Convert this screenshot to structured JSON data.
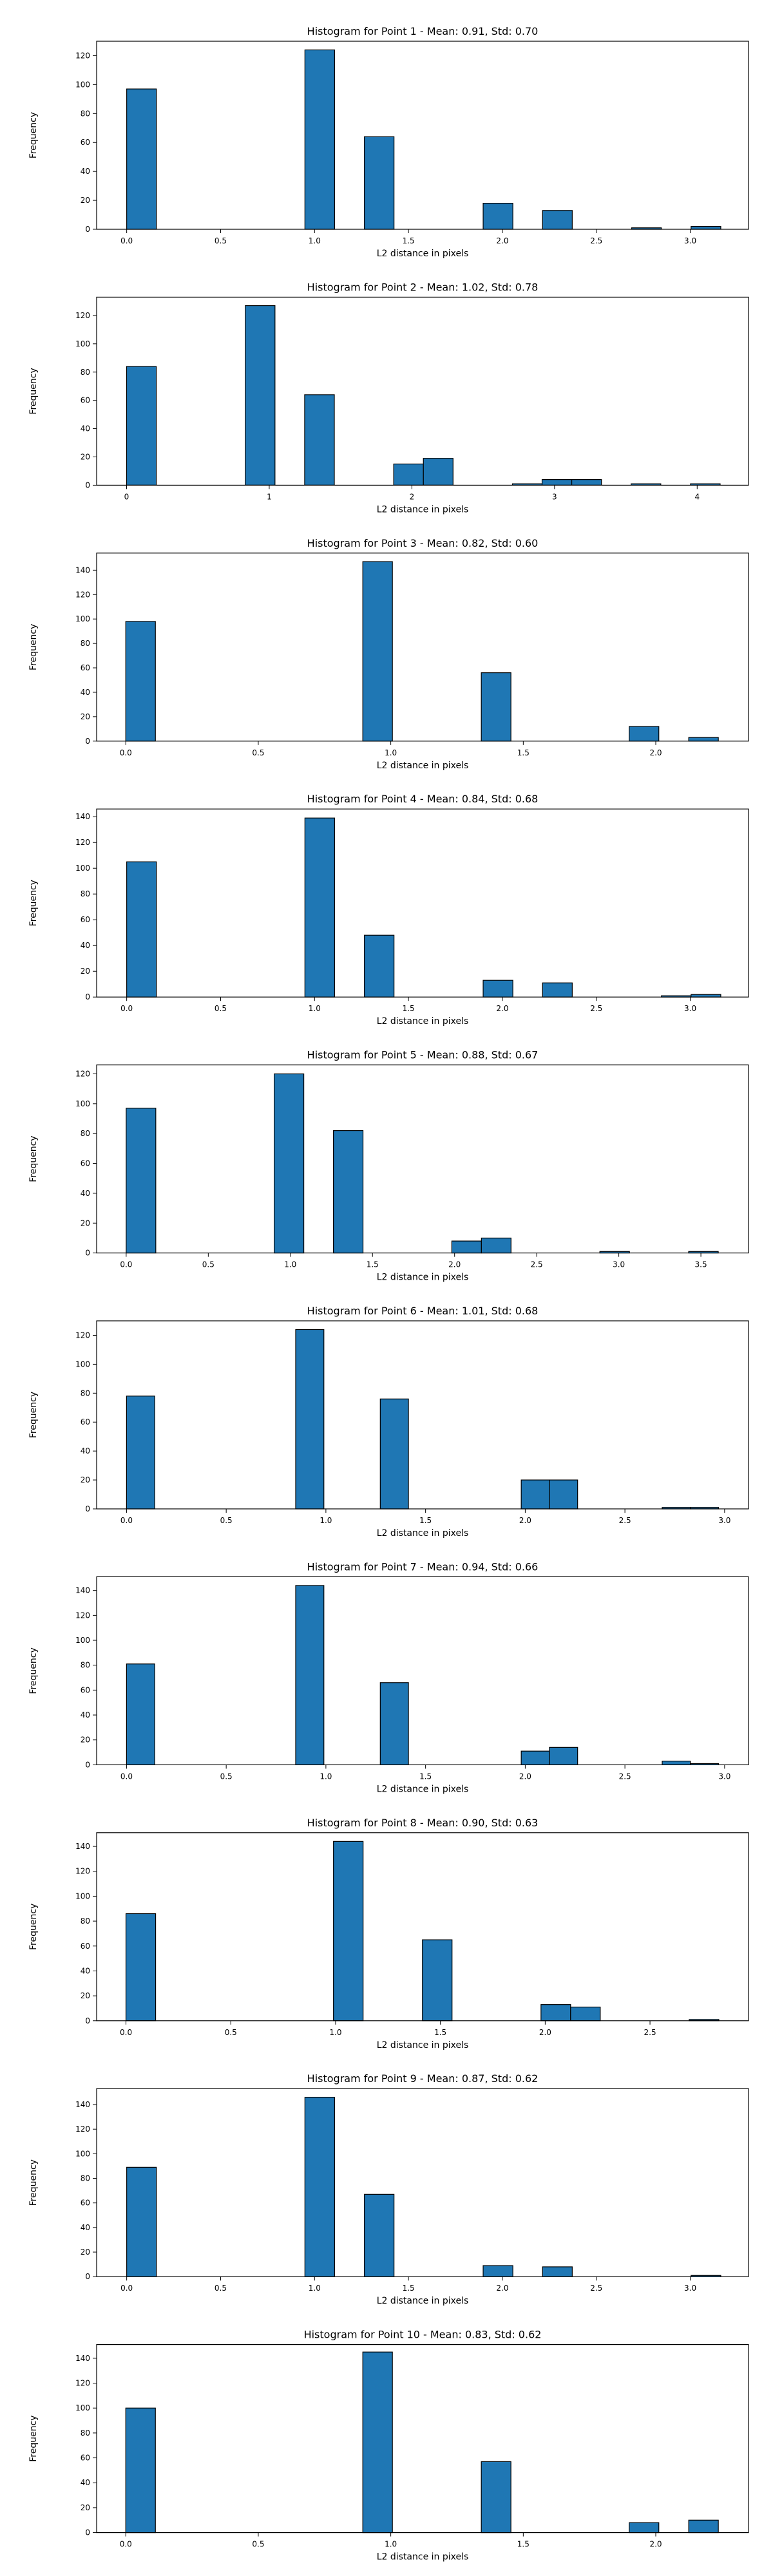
{
  "chart_data": [
    {
      "type": "bar",
      "title": "Histogram for Point 1 - Mean: 0.91, Std: 0.70",
      "xlabel": "L2 distance in pixels",
      "ylabel": "Frequency",
      "xlim": [
        -0.16,
        3.31
      ],
      "ylim": [
        0,
        130
      ],
      "xticks": [
        0.0,
        0.5,
        1.0,
        1.5,
        2.0,
        2.5,
        3.0
      ],
      "xtick_labels": [
        "0.0",
        "0.5",
        "1.0",
        "1.5",
        "2.0",
        "2.5",
        "3.0"
      ],
      "yticks": [
        0,
        20,
        40,
        60,
        80,
        100,
        120
      ],
      "ytick_labels": [
        "0",
        "20",
        "40",
        "60",
        "80",
        "100",
        "120"
      ],
      "bin_width": 0.1581,
      "bins": [
        {
          "x0": 0.0,
          "count": 97
        },
        {
          "x0": 0.9487,
          "count": 124
        },
        {
          "x0": 1.2649,
          "count": 64
        },
        {
          "x0": 1.8974,
          "count": 18
        },
        {
          "x0": 2.2136,
          "count": 13
        },
        {
          "x0": 2.6879,
          "count": 1
        },
        {
          "x0": 3.0042,
          "count": 2
        }
      ]
    },
    {
      "type": "bar",
      "title": "Histogram for Point 2 - Mean: 1.02, Std: 0.78",
      "xlabel": "L2 distance in pixels",
      "ylabel": "Frequency",
      "xlim": [
        -0.21,
        4.36
      ],
      "ylim": [
        0,
        133
      ],
      "xticks": [
        0,
        1,
        2,
        3,
        4
      ],
      "xtick_labels": [
        "0",
        "1",
        "2",
        "3",
        "4"
      ],
      "yticks": [
        0,
        20,
        40,
        60,
        80,
        100,
        120
      ],
      "ytick_labels": [
        "0",
        "20",
        "40",
        "60",
        "80",
        "100",
        "120"
      ],
      "bin_width": 0.2081,
      "bins": [
        {
          "x0": 0.0,
          "count": 84
        },
        {
          "x0": 0.8322,
          "count": 127
        },
        {
          "x0": 1.2483,
          "count": 64
        },
        {
          "x0": 1.8725,
          "count": 15
        },
        {
          "x0": 2.0806,
          "count": 19
        },
        {
          "x0": 2.7048,
          "count": 1
        },
        {
          "x0": 2.9128,
          "count": 4
        },
        {
          "x0": 3.1209,
          "count": 4
        },
        {
          "x0": 3.537,
          "count": 1
        },
        {
          "x0": 3.9531,
          "count": 1
        }
      ]
    },
    {
      "type": "bar",
      "title": "Histogram for Point 3 - Mean: 0.82, Std: 0.60",
      "xlabel": "L2 distance in pixels",
      "ylabel": "Frequency",
      "xlim": [
        -0.11,
        2.35
      ],
      "ylim": [
        0,
        154
      ],
      "xticks": [
        0.0,
        0.5,
        1.0,
        1.5,
        2.0
      ],
      "xtick_labels": [
        "0.0",
        "0.5",
        "1.0",
        "1.5",
        "2.0"
      ],
      "yticks": [
        0,
        20,
        40,
        60,
        80,
        100,
        120,
        140
      ],
      "ytick_labels": [
        "0",
        "20",
        "40",
        "60",
        "80",
        "100",
        "120",
        "140"
      ],
      "bin_width": 0.1118,
      "bins": [
        {
          "x0": 0.0,
          "count": 98
        },
        {
          "x0": 0.8944,
          "count": 147
        },
        {
          "x0": 1.3416,
          "count": 56
        },
        {
          "x0": 1.8997,
          "count": 12
        },
        {
          "x0": 2.1243,
          "count": 3
        }
      ]
    },
    {
      "type": "bar",
      "title": "Histogram for Point 4 - Mean: 0.84, Std: 0.68",
      "xlabel": "L2 distance in pixels",
      "ylabel": "Frequency",
      "xlim": [
        -0.16,
        3.31
      ],
      "ylim": [
        0,
        146
      ],
      "xticks": [
        0.0,
        0.5,
        1.0,
        1.5,
        2.0,
        2.5,
        3.0
      ],
      "xtick_labels": [
        "0.0",
        "0.5",
        "1.0",
        "1.5",
        "2.0",
        "2.5",
        "3.0"
      ],
      "yticks": [
        0,
        20,
        40,
        60,
        80,
        100,
        120,
        140
      ],
      "ytick_labels": [
        "0",
        "20",
        "40",
        "60",
        "80",
        "100",
        "120",
        "140"
      ],
      "bin_width": 0.1581,
      "bins": [
        {
          "x0": 0.0,
          "count": 105
        },
        {
          "x0": 0.9487,
          "count": 139
        },
        {
          "x0": 1.2649,
          "count": 48
        },
        {
          "x0": 1.8974,
          "count": 13
        },
        {
          "x0": 2.2136,
          "count": 11
        },
        {
          "x0": 2.8461,
          "count": 1
        },
        {
          "x0": 3.0042,
          "count": 2
        }
      ]
    },
    {
      "type": "bar",
      "title": "Histogram for Point 5 - Mean: 0.88, Std: 0.67",
      "xlabel": "L2 distance in pixels",
      "ylabel": "Frequency",
      "xlim": [
        -0.18,
        3.79
      ],
      "ylim": [
        0,
        126
      ],
      "xticks": [
        0.0,
        0.5,
        1.0,
        1.5,
        2.0,
        2.5,
        3.0,
        3.5
      ],
      "xtick_labels": [
        "0.0",
        "0.5",
        "1.0",
        "1.5",
        "2.0",
        "2.5",
        "3.0",
        "3.5"
      ],
      "yticks": [
        0,
        20,
        40,
        60,
        80,
        100,
        120
      ],
      "ytick_labels": [
        "0",
        "20",
        "40",
        "60",
        "80",
        "100",
        "120"
      ],
      "bin_width": 0.1803,
      "bins": [
        {
          "x0": 0.0,
          "count": 97
        },
        {
          "x0": 0.9014,
          "count": 120
        },
        {
          "x0": 1.262,
          "count": 82
        },
        {
          "x0": 1.9831,
          "count": 8
        },
        {
          "x0": 2.1634,
          "count": 10
        },
        {
          "x0": 2.8846,
          "count": 1
        },
        {
          "x0": 3.4254,
          "count": 1
        }
      ]
    },
    {
      "type": "bar",
      "title": "Histogram for Point 6 - Mean: 1.01, Std: 0.68",
      "xlabel": "L2 distance in pixels",
      "ylabel": "Frequency",
      "xlim": [
        -0.15,
        3.12
      ],
      "ylim": [
        0,
        130
      ],
      "xticks": [
        0.0,
        0.5,
        1.0,
        1.5,
        2.0,
        2.5,
        3.0
      ],
      "xtick_labels": [
        "0.0",
        "0.5",
        "1.0",
        "1.5",
        "2.0",
        "2.5",
        "3.0"
      ],
      "yticks": [
        0,
        20,
        40,
        60,
        80,
        100,
        120
      ],
      "ytick_labels": [
        "0",
        "20",
        "40",
        "60",
        "80",
        "100",
        "120"
      ],
      "bin_width": 0.1414,
      "bins": [
        {
          "x0": 0.0,
          "count": 78
        },
        {
          "x0": 0.8485,
          "count": 124
        },
        {
          "x0": 1.2728,
          "count": 76
        },
        {
          "x0": 1.9799,
          "count": 20
        },
        {
          "x0": 2.1213,
          "count": 20
        },
        {
          "x0": 2.687,
          "count": 1
        },
        {
          "x0": 2.8284,
          "count": 1
        }
      ]
    },
    {
      "type": "bar",
      "title": "Histogram for Point 7 - Mean: 0.94, Std: 0.66",
      "xlabel": "L2 distance in pixels",
      "ylabel": "Frequency",
      "xlim": [
        -0.15,
        3.12
      ],
      "ylim": [
        0,
        151
      ],
      "xticks": [
        0.0,
        0.5,
        1.0,
        1.5,
        2.0,
        2.5,
        3.0
      ],
      "xtick_labels": [
        "0.0",
        "0.5",
        "1.0",
        "1.5",
        "2.0",
        "2.5",
        "3.0"
      ],
      "yticks": [
        0,
        20,
        40,
        60,
        80,
        100,
        120,
        140
      ],
      "ytick_labels": [
        "0",
        "20",
        "40",
        "60",
        "80",
        "100",
        "120",
        "140"
      ],
      "bin_width": 0.1414,
      "bins": [
        {
          "x0": 0.0,
          "count": 81
        },
        {
          "x0": 0.8485,
          "count": 144
        },
        {
          "x0": 1.2728,
          "count": 66
        },
        {
          "x0": 1.9799,
          "count": 11
        },
        {
          "x0": 2.1213,
          "count": 14
        },
        {
          "x0": 2.687,
          "count": 3
        },
        {
          "x0": 2.8284,
          "count": 1
        }
      ]
    },
    {
      "type": "bar",
      "title": "Histogram for Point 8 - Mean: 0.90, Std: 0.63",
      "xlabel": "L2 distance in pixels",
      "ylabel": "Frequency",
      "xlim": [
        -0.14,
        2.97
      ],
      "ylim": [
        0,
        151
      ],
      "xticks": [
        0.0,
        0.5,
        1.0,
        1.5,
        2.0,
        2.5
      ],
      "xtick_labels": [
        "0.0",
        "0.5",
        "1.0",
        "1.5",
        "2.0",
        "2.5"
      ],
      "yticks": [
        0,
        20,
        40,
        60,
        80,
        100,
        120,
        140
      ],
      "ytick_labels": [
        "0",
        "20",
        "40",
        "60",
        "80",
        "100",
        "120",
        "140"
      ],
      "bin_width": 0.1414,
      "bins": [
        {
          "x0": 0.0,
          "count": 86
        },
        {
          "x0": 0.9899,
          "count": 144
        },
        {
          "x0": 1.4142,
          "count": 65
        },
        {
          "x0": 1.9799,
          "count": 13
        },
        {
          "x0": 2.1213,
          "count": 11
        },
        {
          "x0": 2.687,
          "count": 1
        }
      ]
    },
    {
      "type": "bar",
      "title": "Histogram for Point 9 - Mean: 0.87, Std: 0.62",
      "xlabel": "L2 distance in pixels",
      "ylabel": "Frequency",
      "xlim": [
        -0.16,
        3.31
      ],
      "ylim": [
        0,
        153
      ],
      "xticks": [
        0.0,
        0.5,
        1.0,
        1.5,
        2.0,
        2.5,
        3.0
      ],
      "xtick_labels": [
        "0.0",
        "0.5",
        "1.0",
        "1.5",
        "2.0",
        "2.5",
        "3.0"
      ],
      "yticks": [
        0,
        20,
        40,
        60,
        80,
        100,
        120,
        140
      ],
      "ytick_labels": [
        "0",
        "20",
        "40",
        "60",
        "80",
        "100",
        "120",
        "140"
      ],
      "bin_width": 0.1581,
      "bins": [
        {
          "x0": 0.0,
          "count": 89
        },
        {
          "x0": 0.9487,
          "count": 146
        },
        {
          "x0": 1.2649,
          "count": 67
        },
        {
          "x0": 1.8974,
          "count": 9
        },
        {
          "x0": 2.2136,
          "count": 8
        },
        {
          "x0": 3.0042,
          "count": 1
        }
      ]
    },
    {
      "type": "bar",
      "title": "Histogram for Point 10 - Mean: 0.83, Std: 0.62",
      "xlabel": "L2 distance in pixels",
      "ylabel": "Frequency",
      "xlim": [
        -0.11,
        2.35
      ],
      "ylim": [
        0,
        151
      ],
      "xticks": [
        0.0,
        0.5,
        1.0,
        1.5,
        2.0
      ],
      "xtick_labels": [
        "0.0",
        "0.5",
        "1.0",
        "1.5",
        "2.0"
      ],
      "yticks": [
        0,
        20,
        40,
        60,
        80,
        100,
        120,
        140
      ],
      "ytick_labels": [
        "0",
        "20",
        "40",
        "60",
        "80",
        "100",
        "120",
        "140"
      ],
      "bin_width": 0.1118,
      "bins": [
        {
          "x0": 0.0,
          "count": 100
        },
        {
          "x0": 0.8944,
          "count": 145
        },
        {
          "x0": 1.3416,
          "count": 57
        },
        {
          "x0": 1.8997,
          "count": 8
        },
        {
          "x0": 2.1243,
          "count": 10
        }
      ]
    }
  ],
  "style": {
    "bar_color": "#1f77b4",
    "bar_edge_color": "#000000",
    "axes_color": "#000000",
    "background": "#ffffff"
  }
}
